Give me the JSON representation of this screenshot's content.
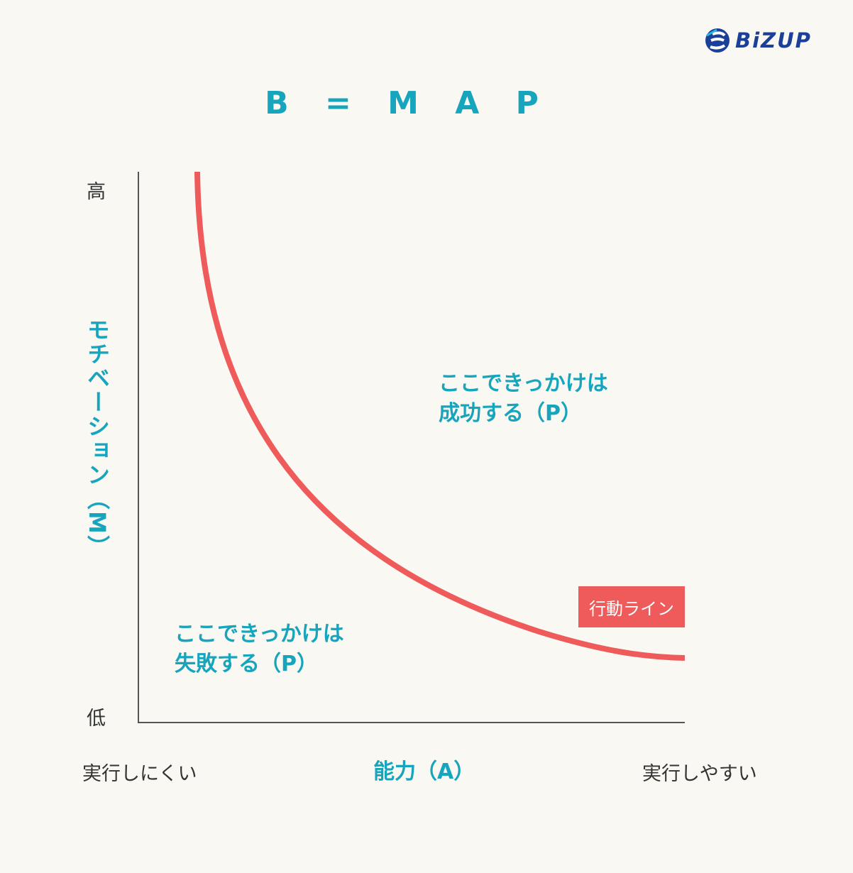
{
  "logo": {
    "text": "BiZUP",
    "icon": "bizup-logo-mark",
    "color": "#1c3f97"
  },
  "title": "B = M A P",
  "y_axis": {
    "label": "モチベーション（M）",
    "high_label": "高",
    "low_label": "低"
  },
  "x_axis": {
    "label": "能力（A）",
    "left_label": "実行しにくい",
    "right_label": "実行しやすい"
  },
  "regions": {
    "success_line1": "ここできっかけは",
    "success_line2": "成功する（P）",
    "fail_line1": "ここできっかけは",
    "fail_line2": "失敗する（P）"
  },
  "action_line": {
    "label": "行動ライン",
    "color": "#ef5a5a"
  },
  "colors": {
    "accent": "#17a5bd",
    "background": "#f9f8f3",
    "axis": "#555555",
    "text": "#333333"
  }
}
